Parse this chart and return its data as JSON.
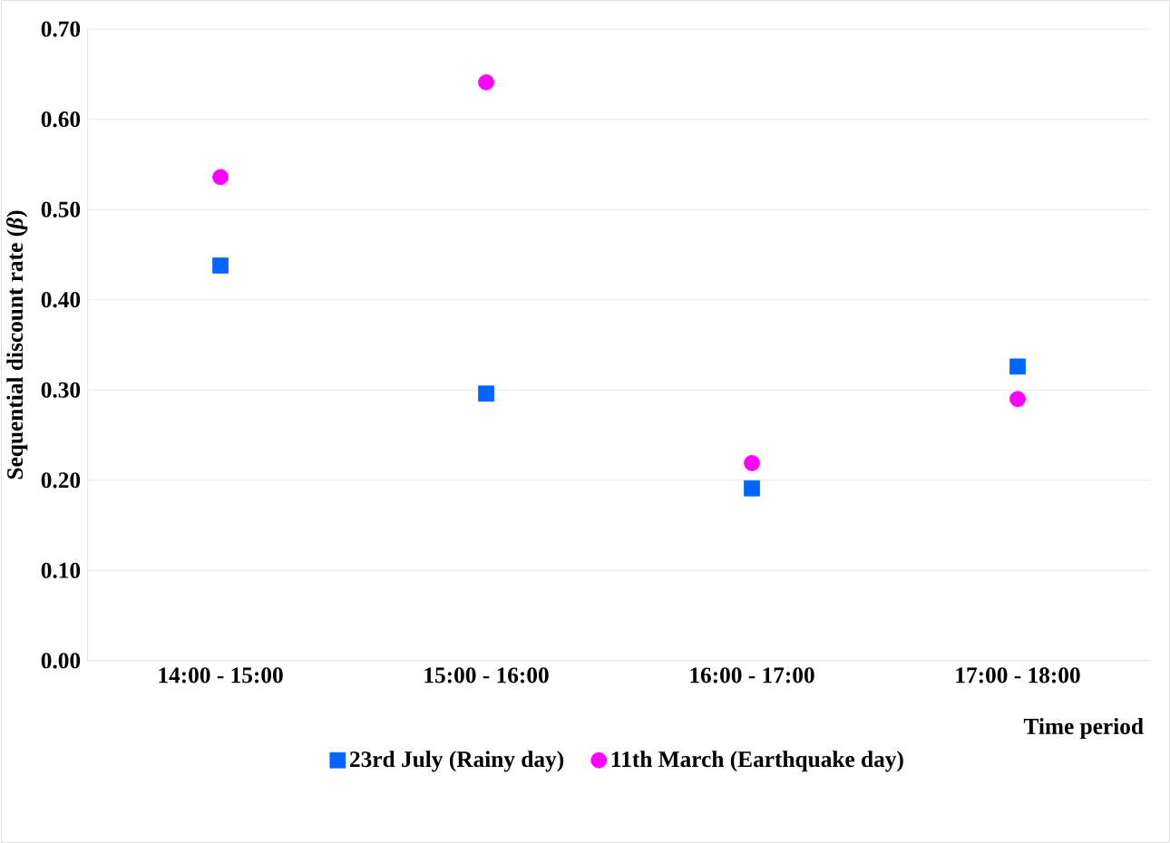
{
  "chart_data": {
    "type": "scatter",
    "xlabel": "Time period",
    "ylabel": "Sequential discount rate (*β*)",
    "categories": [
      "14:00 - 15:00",
      "15:00 - 16:00",
      "16:00 - 17:00",
      "17:00 - 18:00"
    ],
    "series": [
      {
        "name": "23rd July (Rainy day)",
        "color": "#0066ff",
        "marker": "square",
        "values": [
          0.438,
          0.296,
          0.191,
          0.326
        ]
      },
      {
        "name": "11th March (Earthquake day)",
        "color": "#ff00ff",
        "marker": "circle",
        "values": [
          0.536,
          0.641,
          0.219,
          0.29
        ]
      }
    ],
    "ylim": [
      0,
      0.7
    ],
    "yticks": [
      {
        "value": 0,
        "label": "0.00"
      },
      {
        "value": 0.1,
        "label": "0.10"
      },
      {
        "value": 0.2,
        "label": "0.20"
      },
      {
        "value": 0.3,
        "label": "0.30"
      },
      {
        "value": 0.4,
        "label": "0.40"
      },
      {
        "value": 0.5,
        "label": "0.50"
      },
      {
        "value": 0.6,
        "label": "0.60"
      },
      {
        "value": 0.7,
        "label": "0.70"
      }
    ],
    "grid": "y",
    "legend": "bottom"
  }
}
